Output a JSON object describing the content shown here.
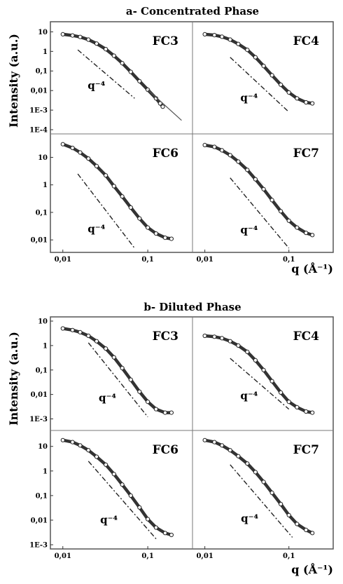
{
  "figures": [
    {
      "title": "a- Concentrated Phase",
      "ylabel": "Intensity (a.u.)",
      "xlabel": "q (Å⁻¹)",
      "x_ticks": [
        "0,01",
        "0,1"
      ],
      "panels": [
        {
          "label": "FC3",
          "y_ticks": [
            "10",
            "1",
            "0,1",
            "0,01",
            "1E-3",
            "1E-4"
          ],
          "slope_label": "q⁻⁴"
        },
        {
          "label": "FC4",
          "y_ticks": [],
          "slope_label": "q⁻⁴"
        },
        {
          "label": "FC6",
          "y_ticks": [
            "10",
            "1",
            "0,1",
            "0,01"
          ],
          "slope_label": "q⁻⁴"
        },
        {
          "label": "FC7",
          "y_ticks": [],
          "slope_label": "q⁻⁴"
        }
      ]
    },
    {
      "title": "b- Diluted Phase",
      "ylabel": "Intensity (a.u.)",
      "xlabel": "q (Å⁻¹)",
      "x_ticks": [
        "0,01",
        "0,1"
      ],
      "panels": [
        {
          "label": "FC3",
          "y_ticks": [
            "10",
            "1",
            "0,1",
            "0,01",
            "1E-3"
          ],
          "slope_label": "q⁻⁴"
        },
        {
          "label": "FC4",
          "y_ticks": [],
          "slope_label": "q⁻⁴"
        },
        {
          "label": "FC6",
          "y_ticks": [
            "10",
            "1",
            "0,1",
            "0,01",
            "1E-3"
          ],
          "slope_label": "q⁻⁴"
        },
        {
          "label": "FC7",
          "y_ticks": [],
          "slope_label": "q⁻⁴"
        }
      ]
    }
  ],
  "chart_data": [
    {
      "type": "scatter",
      "title": "a- Concentrated Phase",
      "xlabel": "q (Å⁻¹)",
      "ylabel": "Intensity (a.u.)",
      "x_scale": "log",
      "y_scale": "log",
      "xlim": [
        0.008,
        0.3
      ],
      "x_tick_labels": [
        "0,01",
        "0,1"
      ],
      "panels": [
        {
          "name": "FC3",
          "ylim": [
            0.0001,
            20
          ],
          "y_tick_labels": [
            "10",
            "1",
            "0,1",
            "0,01",
            "1E-3",
            "1E-4"
          ],
          "points": [
            [
              0.01,
              7.5
            ],
            [
              0.013,
              6.5
            ],
            [
              0.016,
              5.5
            ],
            [
              0.02,
              4
            ],
            [
              0.025,
              2.5
            ],
            [
              0.032,
              1.3
            ],
            [
              0.04,
              0.6
            ],
            [
              0.05,
              0.25
            ],
            [
              0.063,
              0.09
            ],
            [
              0.08,
              0.03
            ],
            [
              0.1,
              0.011
            ],
            [
              0.125,
              0.004
            ],
            [
              0.14,
              0.0022
            ],
            [
              0.15,
              0.0015
            ]
          ],
          "fit_line": [
            [
              0.1,
              0.011
            ],
            [
              0.25,
              0.0003
            ]
          ],
          "slope_guide": {
            "slope_label": "q⁻⁴",
            "from": [
              0.015,
              1.2
            ],
            "to": [
              0.07,
              0.004
            ]
          }
        },
        {
          "name": "FC4",
          "ylim": [
            0.0001,
            20
          ],
          "points": [
            [
              0.01,
              7.5
            ],
            [
              0.013,
              6.8
            ],
            [
              0.016,
              5.6
            ],
            [
              0.02,
              4
            ],
            [
              0.025,
              2.4
            ],
            [
              0.032,
              1.2
            ],
            [
              0.04,
              0.5
            ],
            [
              0.05,
              0.18
            ],
            [
              0.063,
              0.06
            ],
            [
              0.08,
              0.02
            ],
            [
              0.1,
              0.008
            ],
            [
              0.125,
              0.004
            ],
            [
              0.16,
              0.0025
            ],
            [
              0.19,
              0.0022
            ]
          ],
          "slope_guide": {
            "slope_label": "q⁻⁴",
            "from": [
              0.02,
              0.5
            ],
            "to": [
              0.1,
              0.0008
            ]
          }
        },
        {
          "name": "FC6",
          "ylim": [
            0.005,
            50
          ],
          "y_tick_labels": [
            "10",
            "1",
            "0,1",
            "0,01"
          ],
          "points": [
            [
              0.01,
              30
            ],
            [
              0.013,
              22
            ],
            [
              0.016,
              15
            ],
            [
              0.02,
              9
            ],
            [
              0.025,
              4.8
            ],
            [
              0.032,
              2.2
            ],
            [
              0.04,
              0.9
            ],
            [
              0.05,
              0.38
            ],
            [
              0.063,
              0.15
            ],
            [
              0.08,
              0.06
            ],
            [
              0.1,
              0.028
            ],
            [
              0.125,
              0.017
            ],
            [
              0.16,
              0.012
            ],
            [
              0.19,
              0.011
            ]
          ],
          "slope_guide": {
            "slope_label": "q⁻⁴",
            "from": [
              0.015,
              2.5
            ],
            "to": [
              0.07,
              0.005
            ]
          }
        },
        {
          "name": "FC7",
          "ylim": [
            0.005,
            50
          ],
          "points": [
            [
              0.01,
              28
            ],
            [
              0.013,
              24
            ],
            [
              0.016,
              18
            ],
            [
              0.02,
              12
            ],
            [
              0.025,
              7
            ],
            [
              0.032,
              3.5
            ],
            [
              0.04,
              1.6
            ],
            [
              0.05,
              0.7
            ],
            [
              0.063,
              0.28
            ],
            [
              0.08,
              0.11
            ],
            [
              0.1,
              0.05
            ],
            [
              0.125,
              0.028
            ],
            [
              0.16,
              0.018
            ],
            [
              0.19,
              0.015
            ]
          ],
          "slope_guide": {
            "slope_label": "q⁻⁴",
            "from": [
              0.02,
              1.8
            ],
            "to": [
              0.1,
              0.005
            ]
          }
        }
      ]
    },
    {
      "type": "scatter",
      "title": "b- Diluted Phase",
      "xlabel": "q (Å⁻¹)",
      "ylabel": "Intensity (a.u.)",
      "x_scale": "log",
      "y_scale": "log",
      "xlim": [
        0.008,
        0.3
      ],
      "x_tick_labels": [
        "0,01",
        "0,1"
      ],
      "panels": [
        {
          "name": "FC3",
          "ylim": [
            0.0005,
            10
          ],
          "y_tick_labels": [
            "10",
            "1",
            "0,1",
            "0,01",
            "1E-3"
          ],
          "points": [
            [
              0.01,
              5
            ],
            [
              0.013,
              4.3
            ],
            [
              0.016,
              3.5
            ],
            [
              0.02,
              2.5
            ],
            [
              0.025,
              1.5
            ],
            [
              0.032,
              0.75
            ],
            [
              0.04,
              0.33
            ],
            [
              0.05,
              0.12
            ],
            [
              0.063,
              0.04
            ],
            [
              0.08,
              0.013
            ],
            [
              0.1,
              0.005
            ],
            [
              0.125,
              0.0025
            ],
            [
              0.16,
              0.0018
            ],
            [
              0.19,
              0.0018
            ]
          ],
          "slope_guide": {
            "slope_label": "q⁻⁴",
            "from": [
              0.02,
              1.3
            ],
            "to": [
              0.1,
              0.0012
            ]
          }
        },
        {
          "name": "FC4",
          "ylim": [
            0.0005,
            10
          ],
          "points": [
            [
              0.01,
              2.5
            ],
            [
              0.013,
              2.3
            ],
            [
              0.016,
              2
            ],
            [
              0.02,
              1.5
            ],
            [
              0.025,
              1
            ],
            [
              0.032,
              0.55
            ],
            [
              0.04,
              0.25
            ],
            [
              0.05,
              0.1
            ],
            [
              0.063,
              0.035
            ],
            [
              0.08,
              0.012
            ],
            [
              0.1,
              0.005
            ],
            [
              0.125,
              0.003
            ],
            [
              0.16,
              0.002
            ],
            [
              0.19,
              0.0018
            ]
          ],
          "slope_guide": {
            "slope_label": "q⁻⁴",
            "from": [
              0.02,
              0.3
            ],
            "to": [
              0.1,
              0.0025
            ]
          }
        },
        {
          "name": "FC6",
          "ylim": [
            0.001,
            30
          ],
          "y_tick_labels": [
            "10",
            "1",
            "0,1",
            "0,01",
            "1E-3"
          ],
          "points": [
            [
              0.01,
              18
            ],
            [
              0.013,
              15
            ],
            [
              0.016,
              11
            ],
            [
              0.02,
              7
            ],
            [
              0.025,
              3.8
            ],
            [
              0.032,
              1.8
            ],
            [
              0.04,
              0.75
            ],
            [
              0.05,
              0.28
            ],
            [
              0.063,
              0.1
            ],
            [
              0.08,
              0.033
            ],
            [
              0.1,
              0.011
            ],
            [
              0.125,
              0.005
            ],
            [
              0.16,
              0.003
            ],
            [
              0.19,
              0.0025
            ]
          ],
          "slope_guide": {
            "slope_label": "q⁻⁴",
            "from": [
              0.02,
              2.5
            ],
            "to": [
              0.13,
              0.0015
            ]
          }
        },
        {
          "name": "FC7",
          "ylim": [
            0.001,
            30
          ],
          "points": [
            [
              0.01,
              18
            ],
            [
              0.013,
              15
            ],
            [
              0.016,
              11
            ],
            [
              0.02,
              7
            ],
            [
              0.025,
              4
            ],
            [
              0.032,
              2
            ],
            [
              0.04,
              0.9
            ],
            [
              0.05,
              0.36
            ],
            [
              0.063,
              0.13
            ],
            [
              0.08,
              0.045
            ],
            [
              0.1,
              0.016
            ],
            [
              0.125,
              0.007
            ],
            [
              0.16,
              0.004
            ],
            [
              0.19,
              0.003
            ]
          ],
          "slope_guide": {
            "slope_label": "q⁻⁴",
            "from": [
              0.02,
              1.8
            ],
            "to": [
              0.11,
              0.002
            ]
          }
        }
      ]
    }
  ]
}
